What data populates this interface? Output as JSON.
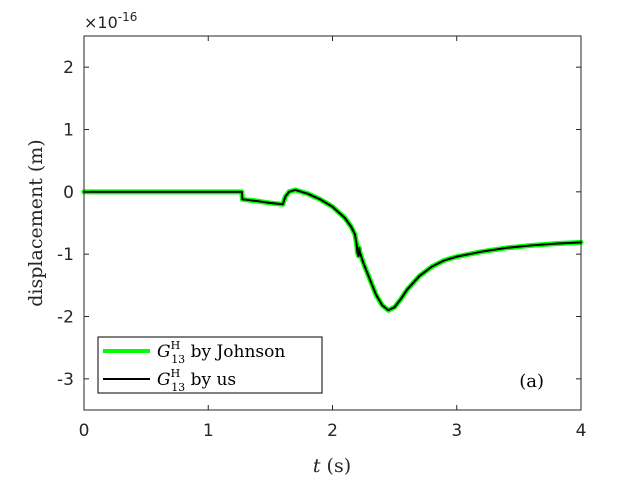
{
  "chart_data": {
    "type": "line",
    "xlabel": "t (s)",
    "xlabel_var": "t",
    "xlabel_unit": " (s)",
    "ylabel": "displacement (m)",
    "exponent_label": "×10",
    "exponent_power": "-16",
    "xlim": [
      0,
      4
    ],
    "ylim": [
      -3.5,
      2.5
    ],
    "xticks": [
      0,
      1,
      2,
      3,
      4
    ],
    "xtick_labels": [
      "0",
      "1",
      "2",
      "3",
      "4"
    ],
    "yticks": [
      2,
      1,
      0,
      -1,
      -2,
      -3
    ],
    "ytick_labels": [
      "2",
      "1",
      "0",
      "-1",
      "-2",
      "-3"
    ],
    "grid": false,
    "legend_position": "bottom-left",
    "annotation": "(a)",
    "series": [
      {
        "name": "G13H by Johnson",
        "legend_base": "G",
        "legend_sup": "H",
        "legend_sub": "13",
        "legend_suffix": " by Johnson",
        "color": "#00ff00",
        "x": [
          0,
          0.5,
          1.0,
          1.27,
          1.275,
          1.4,
          1.5,
          1.6,
          1.62,
          1.65,
          1.7,
          1.8,
          1.9,
          2.0,
          2.1,
          2.15,
          2.18,
          2.195,
          2.2,
          2.21,
          2.215,
          2.22,
          2.25,
          2.3,
          2.35,
          2.4,
          2.45,
          2.5,
          2.55,
          2.6,
          2.7,
          2.8,
          2.9,
          3.0,
          3.2,
          3.4,
          3.6,
          3.8,
          4.0
        ],
        "y": [
          0,
          0,
          0,
          0,
          -0.12,
          -0.15,
          -0.18,
          -0.2,
          -0.08,
          0.0,
          0.03,
          -0.03,
          -0.12,
          -0.24,
          -0.42,
          -0.56,
          -0.68,
          -0.85,
          -0.97,
          -1.03,
          -0.9,
          -0.97,
          -1.15,
          -1.4,
          -1.65,
          -1.82,
          -1.9,
          -1.85,
          -1.72,
          -1.57,
          -1.35,
          -1.2,
          -1.1,
          -1.04,
          -0.96,
          -0.9,
          -0.86,
          -0.83,
          -0.81
        ]
      },
      {
        "name": "G13H by us",
        "legend_base": "G",
        "legend_sup": "H",
        "legend_sub": "13",
        "legend_suffix": " by us",
        "color": "#000000",
        "x": [
          0,
          0.5,
          1.0,
          1.27,
          1.275,
          1.4,
          1.5,
          1.6,
          1.62,
          1.65,
          1.7,
          1.8,
          1.9,
          2.0,
          2.1,
          2.15,
          2.18,
          2.195,
          2.2,
          2.21,
          2.215,
          2.22,
          2.25,
          2.3,
          2.35,
          2.4,
          2.45,
          2.5,
          2.55,
          2.6,
          2.7,
          2.8,
          2.9,
          3.0,
          3.2,
          3.4,
          3.6,
          3.8,
          4.0
        ],
        "y": [
          0,
          0,
          0,
          0,
          -0.12,
          -0.15,
          -0.18,
          -0.2,
          -0.08,
          0.0,
          0.03,
          -0.03,
          -0.12,
          -0.24,
          -0.42,
          -0.56,
          -0.68,
          -0.85,
          -0.97,
          -1.03,
          -0.9,
          -0.97,
          -1.15,
          -1.4,
          -1.65,
          -1.82,
          -1.9,
          -1.85,
          -1.72,
          -1.57,
          -1.35,
          -1.2,
          -1.1,
          -1.04,
          -0.96,
          -0.9,
          -0.86,
          -0.83,
          -0.81
        ]
      }
    ]
  }
}
